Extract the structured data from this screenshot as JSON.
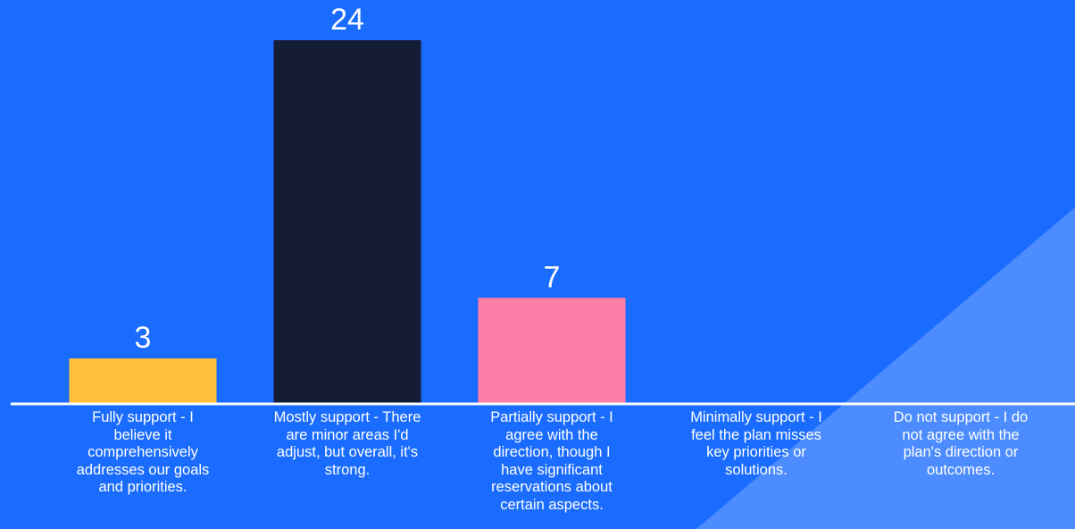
{
  "chart_data": {
    "type": "bar",
    "title": "",
    "xlabel": "",
    "ylabel": "",
    "ylim": [
      0,
      24
    ],
    "grid": false,
    "legend": "none",
    "categories": [
      "Fully support - I believe it comprehensively addresses our goals and priorities.",
      "Mostly support - There are minor areas I'd adjust, but overall, it's strong.",
      "Partially support - I agree with the direction, though I have significant reservations about certain aspects.",
      "Minimally support - I feel the plan misses key priorities or solutions.",
      "Do not support - I do not agree with the plan's direction or outcomes."
    ],
    "values": [
      3,
      24,
      7,
      0,
      0
    ],
    "data_labels": [
      "3",
      "24",
      "7",
      "",
      ""
    ],
    "colors": [
      "#ffc13b",
      "#141c36",
      "#ff7ea7",
      "#ffffff",
      "#ffffff"
    ],
    "background_color": "#1a6cff",
    "axis_color": "#ffffff"
  }
}
